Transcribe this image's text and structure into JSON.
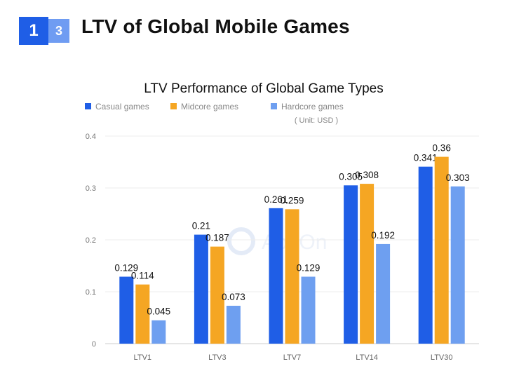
{
  "header": {
    "badge_main": "1",
    "badge_sub": "3",
    "title": "LTV of Global Mobile Games"
  },
  "chart_data": {
    "type": "bar",
    "title": "LTV Performance of Global Game Types",
    "subtitle": "( Unit: USD )",
    "watermark": "AppOn",
    "categories": [
      "LTV1",
      "LTV3",
      "LTV7",
      "LTV14",
      "LTV30"
    ],
    "series": [
      {
        "name": "Casual games",
        "color": "#1f5ee6",
        "values": [
          0.129,
          0.21,
          0.261,
          0.305,
          0.341
        ]
      },
      {
        "name": "Midcore games",
        "color": "#f5a623",
        "values": [
          0.114,
          0.187,
          0.259,
          0.308,
          0.36
        ]
      },
      {
        "name": "Hardcore games",
        "color": "#6e9ff0",
        "values": [
          0.045,
          0.073,
          0.129,
          0.192,
          0.303
        ]
      }
    ],
    "yticks": [
      "0",
      "0.1",
      "0.2",
      "0.3",
      "0.4"
    ],
    "ylim": [
      0,
      0.4
    ],
    "grid": true,
    "legend_position": "top-left",
    "xlabel": "",
    "ylabel": ""
  }
}
